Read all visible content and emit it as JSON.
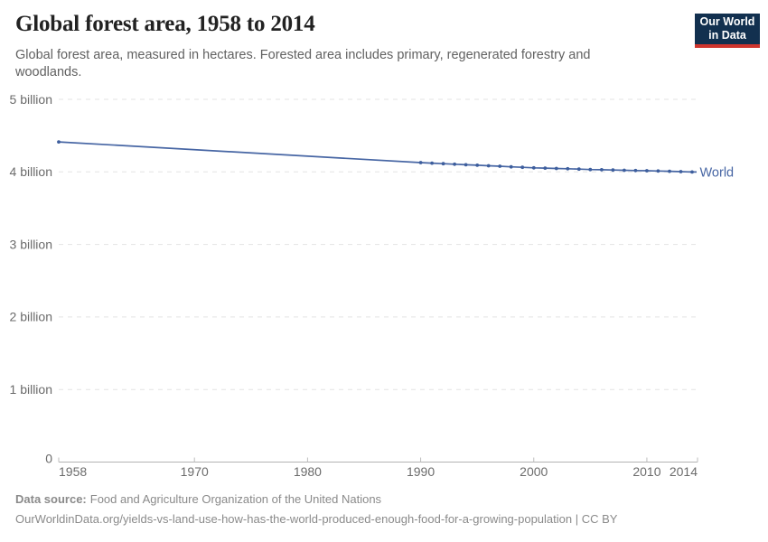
{
  "header": {
    "title": "Global forest area, 1958 to 2014",
    "subtitle": "Global forest area, measured in hectares. Forested area includes primary, regenerated forestry and woodlands.",
    "logo": {
      "line1": "Our World",
      "line2": "in Data",
      "bg_color": "#12304f",
      "stripe_color": "#cf352e"
    }
  },
  "chart_data": {
    "type": "line",
    "title": "Global forest area, 1958 to 2014",
    "xlabel": "",
    "ylabel": "hectares",
    "xlim": [
      1958,
      2014
    ],
    "ylim": [
      0,
      5
    ],
    "grid": true,
    "legend_position": "end-of-line",
    "x": {
      "ticks": [
        1958,
        1970,
        1980,
        1990,
        2000,
        2010,
        2014
      ]
    },
    "y": {
      "ticks": [
        0,
        1,
        2,
        3,
        4,
        5
      ],
      "tick_labels": [
        "0",
        "1 billion",
        "2 billion",
        "3 billion",
        "4 billion",
        "5 billion"
      ],
      "unit": "billion hectares"
    },
    "series": [
      {
        "name": "World",
        "color": "#4766a4",
        "marker_color": "#3d5e9d",
        "points": [
          [
            1958,
            4.413
          ],
          [
            1990,
            4.128
          ],
          [
            1991,
            4.121
          ],
          [
            1992,
            4.113
          ],
          [
            1993,
            4.106
          ],
          [
            1994,
            4.099
          ],
          [
            1995,
            4.092
          ],
          [
            1996,
            4.085
          ],
          [
            1997,
            4.078
          ],
          [
            1998,
            4.07
          ],
          [
            1999,
            4.063
          ],
          [
            2000,
            4.056
          ],
          [
            2001,
            4.052
          ],
          [
            2002,
            4.047
          ],
          [
            2003,
            4.043
          ],
          [
            2004,
            4.038
          ],
          [
            2005,
            4.033
          ],
          [
            2006,
            4.03
          ],
          [
            2007,
            4.026
          ],
          [
            2008,
            4.023
          ],
          [
            2009,
            4.019
          ],
          [
            2010,
            4.016
          ],
          [
            2011,
            4.012
          ],
          [
            2012,
            4.009
          ],
          [
            2013,
            4.004
          ],
          [
            2014,
            3.999
          ]
        ]
      }
    ]
  },
  "footer": {
    "source_label": "Data source:",
    "source": "Food and Agriculture Organization of the United Nations",
    "url_line": "OurWorldinData.org/yields-vs-land-use-how-has-the-world-produced-enough-food-for-a-growing-population | CC BY"
  }
}
